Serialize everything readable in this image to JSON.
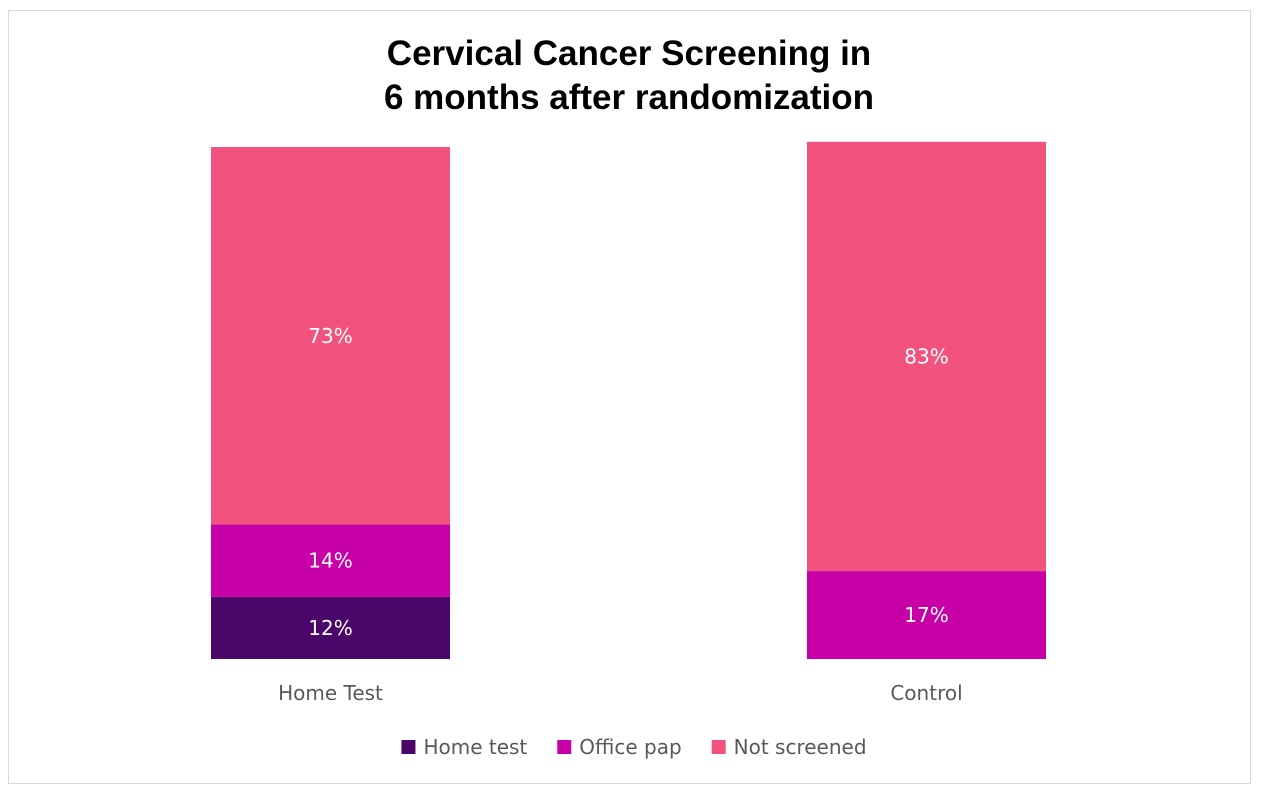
{
  "chart_data": {
    "type": "bar",
    "stacked": true,
    "title_lines": [
      "Cervical Cancer Screening in",
      "6 months after randomization"
    ],
    "categories": [
      "Home Test",
      "Control"
    ],
    "series": [
      {
        "name": "Home test",
        "color": "#4a0669",
        "values": [
          12,
          0
        ],
        "labels": [
          "12%",
          ""
        ]
      },
      {
        "name": "Office pap",
        "color": "#c800a8",
        "values": [
          14,
          17
        ],
        "labels": [
          "14%",
          "17%"
        ]
      },
      {
        "name": "Not screened",
        "color": "#f2537e",
        "values": [
          73,
          83
        ],
        "labels": [
          "73%",
          "83%"
        ]
      }
    ],
    "xlabel": "",
    "ylabel": "",
    "ylim": [
      0,
      99
    ],
    "grid": false,
    "legend": "bottom"
  }
}
